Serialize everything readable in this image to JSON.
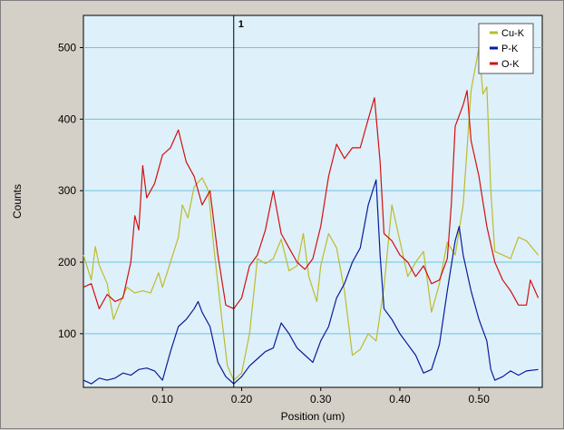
{
  "chart_data": {
    "type": "line",
    "xlabel": "Position (um)",
    "ylabel": "Counts",
    "xlim": [
      0.0,
      0.58
    ],
    "ylim": [
      25,
      545
    ],
    "xticks": [
      0.1,
      0.2,
      0.3,
      0.4,
      0.5
    ],
    "xtick_labels": [
      "0.10",
      "0.20",
      "0.30",
      "0.40",
      "0.50"
    ],
    "yticks": [
      100,
      200,
      300,
      400,
      500
    ],
    "ytick_labels": [
      "100",
      "200",
      "300",
      "400",
      "500"
    ],
    "grid": "horizontal",
    "legend_position": "top-right",
    "background": "#def0fa",
    "marker": {
      "label": "1",
      "x": 0.19
    },
    "series": [
      {
        "name": "Cu-K",
        "color": "#bcbc2a",
        "points": [
          [
            0.0,
            210
          ],
          [
            0.01,
            175
          ],
          [
            0.015,
            222
          ],
          [
            0.02,
            196
          ],
          [
            0.03,
            170
          ],
          [
            0.038,
            120
          ],
          [
            0.045,
            140
          ],
          [
            0.055,
            165
          ],
          [
            0.065,
            157
          ],
          [
            0.075,
            160
          ],
          [
            0.085,
            157
          ],
          [
            0.095,
            185
          ],
          [
            0.1,
            165
          ],
          [
            0.11,
            200
          ],
          [
            0.12,
            235
          ],
          [
            0.125,
            280
          ],
          [
            0.132,
            262
          ],
          [
            0.14,
            305
          ],
          [
            0.15,
            318
          ],
          [
            0.158,
            300
          ],
          [
            0.165,
            220
          ],
          [
            0.175,
            120
          ],
          [
            0.182,
            55
          ],
          [
            0.19,
            35
          ],
          [
            0.2,
            45
          ],
          [
            0.21,
            100
          ],
          [
            0.22,
            205
          ],
          [
            0.23,
            198
          ],
          [
            0.24,
            205
          ],
          [
            0.25,
            232
          ],
          [
            0.26,
            188
          ],
          [
            0.27,
            195
          ],
          [
            0.278,
            240
          ],
          [
            0.285,
            180
          ],
          [
            0.295,
            145
          ],
          [
            0.3,
            195
          ],
          [
            0.31,
            240
          ],
          [
            0.32,
            220
          ],
          [
            0.33,
            160
          ],
          [
            0.34,
            70
          ],
          [
            0.35,
            78
          ],
          [
            0.36,
            100
          ],
          [
            0.37,
            90
          ],
          [
            0.38,
            165
          ],
          [
            0.39,
            280
          ],
          [
            0.4,
            230
          ],
          [
            0.41,
            180
          ],
          [
            0.42,
            200
          ],
          [
            0.43,
            215
          ],
          [
            0.44,
            130
          ],
          [
            0.45,
            170
          ],
          [
            0.46,
            228
          ],
          [
            0.47,
            210
          ],
          [
            0.48,
            280
          ],
          [
            0.49,
            440
          ],
          [
            0.5,
            500
          ],
          [
            0.505,
            435
          ],
          [
            0.51,
            445
          ],
          [
            0.515,
            300
          ],
          [
            0.52,
            215
          ],
          [
            0.53,
            210
          ],
          [
            0.54,
            205
          ],
          [
            0.55,
            235
          ],
          [
            0.56,
            230
          ],
          [
            0.575,
            210
          ]
        ]
      },
      {
        "name": "P-K",
        "color": "#0a1a9a",
        "points": [
          [
            0.0,
            35
          ],
          [
            0.01,
            30
          ],
          [
            0.02,
            38
          ],
          [
            0.03,
            35
          ],
          [
            0.04,
            38
          ],
          [
            0.05,
            45
          ],
          [
            0.06,
            42
          ],
          [
            0.07,
            50
          ],
          [
            0.08,
            52
          ],
          [
            0.09,
            48
          ],
          [
            0.1,
            35
          ],
          [
            0.11,
            75
          ],
          [
            0.12,
            110
          ],
          [
            0.13,
            120
          ],
          [
            0.14,
            135
          ],
          [
            0.145,
            145
          ],
          [
            0.15,
            130
          ],
          [
            0.16,
            110
          ],
          [
            0.17,
            60
          ],
          [
            0.18,
            40
          ],
          [
            0.19,
            30
          ],
          [
            0.2,
            40
          ],
          [
            0.21,
            55
          ],
          [
            0.22,
            65
          ],
          [
            0.23,
            75
          ],
          [
            0.24,
            80
          ],
          [
            0.25,
            115
          ],
          [
            0.26,
            100
          ],
          [
            0.27,
            80
          ],
          [
            0.28,
            70
          ],
          [
            0.29,
            60
          ],
          [
            0.3,
            90
          ],
          [
            0.31,
            110
          ],
          [
            0.32,
            150
          ],
          [
            0.33,
            170
          ],
          [
            0.34,
            200
          ],
          [
            0.35,
            220
          ],
          [
            0.36,
            280
          ],
          [
            0.37,
            315
          ],
          [
            0.375,
            210
          ],
          [
            0.38,
            135
          ],
          [
            0.39,
            120
          ],
          [
            0.4,
            100
          ],
          [
            0.41,
            85
          ],
          [
            0.42,
            70
          ],
          [
            0.43,
            45
          ],
          [
            0.44,
            50
          ],
          [
            0.45,
            85
          ],
          [
            0.46,
            160
          ],
          [
            0.47,
            230
          ],
          [
            0.475,
            250
          ],
          [
            0.48,
            210
          ],
          [
            0.49,
            160
          ],
          [
            0.5,
            120
          ],
          [
            0.51,
            90
          ],
          [
            0.515,
            50
          ],
          [
            0.52,
            35
          ],
          [
            0.53,
            40
          ],
          [
            0.54,
            48
          ],
          [
            0.55,
            42
          ],
          [
            0.56,
            48
          ],
          [
            0.575,
            50
          ]
        ]
      },
      {
        "name": "O-K",
        "color": "#d21010",
        "points": [
          [
            0.0,
            165
          ],
          [
            0.01,
            170
          ],
          [
            0.02,
            135
          ],
          [
            0.03,
            155
          ],
          [
            0.04,
            145
          ],
          [
            0.05,
            150
          ],
          [
            0.06,
            200
          ],
          [
            0.065,
            265
          ],
          [
            0.07,
            245
          ],
          [
            0.075,
            335
          ],
          [
            0.08,
            290
          ],
          [
            0.09,
            310
          ],
          [
            0.1,
            350
          ],
          [
            0.11,
            360
          ],
          [
            0.12,
            385
          ],
          [
            0.13,
            340
          ],
          [
            0.14,
            320
          ],
          [
            0.15,
            280
          ],
          [
            0.16,
            300
          ],
          [
            0.17,
            210
          ],
          [
            0.18,
            140
          ],
          [
            0.19,
            135
          ],
          [
            0.2,
            150
          ],
          [
            0.21,
            195
          ],
          [
            0.22,
            210
          ],
          [
            0.23,
            245
          ],
          [
            0.24,
            300
          ],
          [
            0.25,
            240
          ],
          [
            0.26,
            220
          ],
          [
            0.27,
            200
          ],
          [
            0.28,
            190
          ],
          [
            0.29,
            205
          ],
          [
            0.3,
            250
          ],
          [
            0.31,
            320
          ],
          [
            0.32,
            365
          ],
          [
            0.33,
            345
          ],
          [
            0.34,
            360
          ],
          [
            0.35,
            360
          ],
          [
            0.36,
            400
          ],
          [
            0.368,
            430
          ],
          [
            0.375,
            340
          ],
          [
            0.38,
            240
          ],
          [
            0.39,
            230
          ],
          [
            0.4,
            210
          ],
          [
            0.41,
            200
          ],
          [
            0.42,
            180
          ],
          [
            0.43,
            195
          ],
          [
            0.44,
            170
          ],
          [
            0.45,
            175
          ],
          [
            0.46,
            205
          ],
          [
            0.465,
            280
          ],
          [
            0.47,
            390
          ],
          [
            0.48,
            420
          ],
          [
            0.485,
            440
          ],
          [
            0.49,
            370
          ],
          [
            0.5,
            320
          ],
          [
            0.51,
            250
          ],
          [
            0.52,
            200
          ],
          [
            0.53,
            175
          ],
          [
            0.54,
            160
          ],
          [
            0.55,
            140
          ],
          [
            0.56,
            140
          ],
          [
            0.565,
            175
          ],
          [
            0.575,
            150
          ]
        ]
      }
    ]
  }
}
